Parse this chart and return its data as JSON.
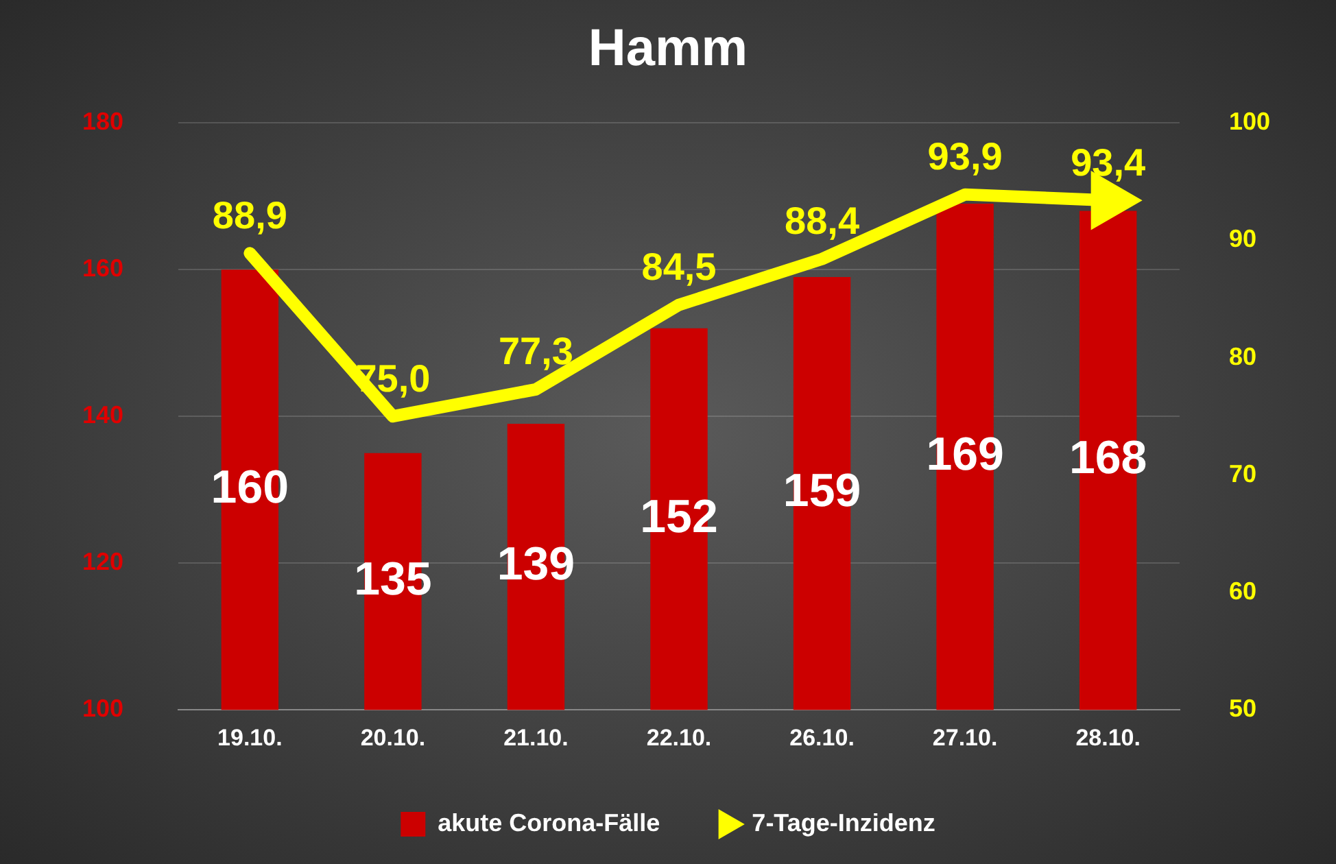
{
  "chart_data": {
    "type": "bar",
    "title": "Hamm",
    "categories": [
      "19.10.",
      "20.10.",
      "21.10.",
      "22.10.",
      "26.10.",
      "27.10.",
      "28.10."
    ],
    "series": [
      {
        "name": "akute Corona-Fälle",
        "color": "#cc0000",
        "values": [
          160,
          135,
          139,
          152,
          159,
          169,
          168
        ],
        "value_labels": [
          "160",
          "135",
          "139",
          "152",
          "159",
          "169",
          "168"
        ]
      },
      {
        "name": "7-Tage-Inzidenz",
        "type": "line",
        "axis": "y2",
        "color": "#ffff00",
        "values": [
          88.9,
          75.0,
          77.3,
          84.5,
          88.4,
          93.9,
          93.4
        ],
        "value_labels": [
          "88,9",
          "75,0",
          "77,3",
          "84,5",
          "88,4",
          "93,9",
          "93,4"
        ]
      }
    ],
    "ylim": [
      100,
      180
    ],
    "yticks": [
      100,
      120,
      140,
      160,
      180
    ],
    "y2lim": [
      50,
      100
    ],
    "y2ticks": [
      50,
      60,
      70,
      80,
      90,
      100
    ],
    "grid": "y",
    "legend": "bottom"
  }
}
